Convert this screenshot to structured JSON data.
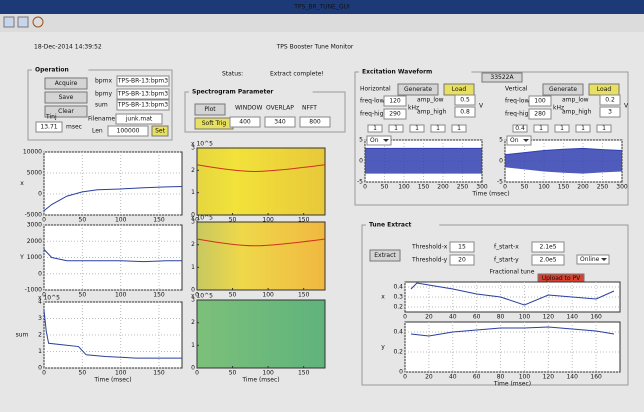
{
  "title_bar": "TPS_BR_TUNE_GUI",
  "header": {
    "date": "18-Dec-2014 14:39:52",
    "title": "TPS Booster Tune Monitor"
  },
  "operation": {
    "title": "Operation",
    "acquire": "Acquire",
    "save": "Save",
    "clear": "Clear",
    "bpmx_label": "bpmx",
    "bpmx": "TPS-BR-13:bpm3",
    "bpmy_label": "bpmy",
    "bpmy": "TPS-BR-13:bpm3",
    "sum_label": "sum",
    "sum": "TPS-BR-13:bpm3",
    "tinj_label": "Tinj",
    "tinj": "13.71",
    "msec": "msec",
    "filename_label": "Filename",
    "filename": "junk.mat",
    "len_label": "Len",
    "len": "100000",
    "set": "Set"
  },
  "status": {
    "label": "Status:",
    "text": "Extract complete!"
  },
  "spectrogram": {
    "title": "Spectrogram Parameter",
    "plot": "Plot",
    "soft_trig": "Soft Trig",
    "window_label": "WINDOW",
    "window": "400",
    "overlap_label": "OVERLAP",
    "overlap": "340",
    "nfft_label": "NFFT",
    "nfft": "800"
  },
  "excitation": {
    "title": "Excitation Waveform",
    "device": "33522A",
    "horizontal": {
      "name": "Horizontal",
      "generate": "Generate",
      "load": "Load",
      "freq_low_label": "freq-low",
      "freq_low": "120",
      "freq_high_label": "freq-high",
      "freq_high": "290",
      "khz": "kHz",
      "amp_low_label": "amp_low",
      "amp_low": "0.5",
      "amp_high_label": "amp_high",
      "amp_high": "0.8",
      "v": "V",
      "small": [
        "1",
        "1",
        "1",
        "1",
        "1"
      ],
      "mode": "On"
    },
    "vertical": {
      "name": "Vertical",
      "generate": "Generate",
      "load": "Load",
      "freq_low_label": "freq-low",
      "freq_low": "100",
      "freq_high_label": "freq-high",
      "freq_high": "280",
      "khz": "kHz",
      "amp_low_label": "amp_low",
      "amp_low": "0.2",
      "amp_high_label": "amp_high",
      "amp_high": "3",
      "v": "V",
      "small": [
        "0.4",
        "1",
        "1",
        "1",
        "1"
      ],
      "mode": "On"
    }
  },
  "tune": {
    "title": "Tune Extract",
    "extract": "Extract",
    "threshold_x_label": "Threshold-x",
    "threshold_x": "15",
    "threshold_y_label": "Threshold-y",
    "threshold_y": "20",
    "f_start_x_label": "f_start-x",
    "f_start_x": "2.1e5",
    "f_start_y_label": "f_start-y",
    "f_start_y": "2.0e5",
    "mode": "Online",
    "plot_title": "Fractional tune",
    "upload": "Upload to PV"
  },
  "plots": [
    {
      "kind": "line",
      "ylabel": "x",
      "xlim": [
        0,
        180
      ],
      "ylim": [
        -5000,
        10000
      ],
      "xticks": [
        0,
        50,
        100,
        150
      ],
      "yticks": [
        -5000,
        0,
        5000,
        10000
      ],
      "series": [
        {
          "color": "#2a3fa0",
          "x": [
            0,
            10,
            20,
            30,
            50,
            70,
            100,
            130,
            160,
            180
          ],
          "values": [
            -4000,
            -2500,
            -1500,
            -500,
            500,
            1000,
            1200,
            1500,
            1700,
            1800
          ]
        }
      ]
    },
    {
      "kind": "line",
      "ylabel": "Y",
      "xlim": [
        0,
        180
      ],
      "ylim": [
        -1000,
        3000
      ],
      "xticks": [
        0,
        50,
        100,
        150
      ],
      "yticks": [
        -1000,
        0,
        1000,
        2000,
        3000
      ],
      "series": [
        {
          "color": "#2a3fa0",
          "x": [
            0,
            10,
            20,
            30,
            50,
            70,
            100,
            130,
            160,
            180
          ],
          "values": [
            1500,
            1000,
            900,
            800,
            800,
            800,
            800,
            750,
            800,
            800
          ]
        }
      ]
    },
    {
      "kind": "line",
      "ylabel": "sum",
      "scale": "x 10^5",
      "xlabel": "Time (msec)",
      "xlim": [
        0,
        180
      ],
      "ylim": [
        0,
        4
      ],
      "xticks": [
        0,
        50,
        100,
        150
      ],
      "yticks": [
        0,
        1,
        2,
        3,
        4
      ],
      "series": [
        {
          "color": "#2a3fa0",
          "x": [
            0,
            3,
            6,
            25,
            45,
            55,
            80,
            120,
            180
          ],
          "values": [
            3.5,
            2.2,
            1.5,
            1.4,
            1.3,
            0.8,
            0.7,
            0.6,
            0.6
          ]
        }
      ]
    },
    {
      "kind": "image",
      "scale": "x 10^5",
      "xlim": [
        0,
        180
      ],
      "ylim": [
        0,
        3
      ],
      "xticks": [
        0,
        50,
        100,
        150
      ],
      "yticks": [
        0,
        1,
        2,
        3
      ]
    },
    {
      "kind": "image",
      "scale": "x 10^5",
      "xlim": [
        0,
        180
      ],
      "ylim": [
        0,
        3
      ],
      "xticks": [
        0,
        50,
        100,
        150
      ],
      "yticks": [
        0,
        1,
        2,
        3
      ]
    },
    {
      "kind": "image",
      "scale": "x 10^5",
      "xlabel": "Time (msec)",
      "xlim": [
        0,
        180
      ],
      "ylim": [
        0,
        3
      ],
      "xticks": [
        0,
        50,
        100,
        150
      ],
      "yticks": [
        0,
        1,
        2,
        3
      ]
    },
    {
      "kind": "band",
      "xlim": [
        0,
        300
      ],
      "ylim": [
        -5,
        5
      ],
      "xticks": [
        0,
        50,
        100,
        150,
        200,
        250,
        300
      ],
      "yticks": [
        -5,
        0,
        5
      ],
      "series": [
        {
          "color": "#3040b0",
          "x": [
            0,
            50,
            100,
            150,
            200,
            250,
            300
          ],
          "values": [
            3,
            3,
            3,
            3,
            3,
            3,
            3
          ]
        }
      ]
    },
    {
      "kind": "band",
      "xlabel": "Time (msec)",
      "xlim": [
        0,
        300
      ],
      "ylim": [
        -5,
        5
      ],
      "xticks": [
        0,
        50,
        100,
        150,
        200,
        250,
        300
      ],
      "yticks": [
        -5,
        0,
        5
      ],
      "series": [
        {
          "color": "#3040b0",
          "x": [
            0,
            50,
            100,
            150,
            200,
            250,
            300
          ],
          "values": [
            1.5,
            2,
            2.5,
            2.8,
            3,
            2.7,
            2.5
          ]
        }
      ]
    },
    {
      "kind": "line",
      "ylabel": "x",
      "xlim": [
        0,
        180
      ],
      "ylim": [
        0.15,
        0.45
      ],
      "xticks": [
        0,
        20,
        40,
        60,
        80,
        100,
        120,
        140,
        160
      ],
      "yticks": [
        0.2,
        0.3,
        0.4
      ],
      "series": [
        {
          "color": "#2a3fa0",
          "x": [
            5,
            10,
            20,
            40,
            60,
            80,
            100,
            120,
            140,
            160,
            175
          ],
          "values": [
            0.38,
            0.44,
            0.42,
            0.38,
            0.33,
            0.3,
            0.22,
            0.32,
            0.3,
            0.28,
            0.36
          ]
        }
      ]
    },
    {
      "kind": "line",
      "ylabel": "y",
      "xlabel": "Time (msec)",
      "xlim": [
        0,
        180
      ],
      "ylim": [
        0,
        0.5
      ],
      "xticks": [
        0,
        20,
        40,
        60,
        80,
        100,
        120,
        140,
        160
      ],
      "yticks": [
        0,
        0.2,
        0.4
      ],
      "series": [
        {
          "color": "#2a3fa0",
          "x": [
            5,
            20,
            40,
            60,
            80,
            100,
            120,
            140,
            160,
            175
          ],
          "values": [
            0.38,
            0.36,
            0.4,
            0.42,
            0.44,
            0.44,
            0.45,
            0.43,
            0.41,
            0.38
          ]
        }
      ]
    }
  ]
}
